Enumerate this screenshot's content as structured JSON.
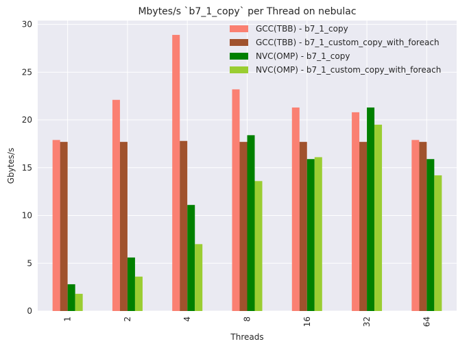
{
  "chart_data": {
    "type": "bar",
    "title": "Mbytes/s `b7_1_copy` per Thread on nebulac",
    "xlabel": "Threads",
    "ylabel": "Gbytes/s",
    "ylim": [
      0,
      30.4
    ],
    "yticks": [
      0,
      5,
      10,
      15,
      20,
      25,
      30
    ],
    "categories": [
      "1",
      "2",
      "4",
      "8",
      "16",
      "32",
      "64"
    ],
    "series": [
      {
        "name": "GCC(TBB) - b7_1_copy",
        "color": "#fa8072",
        "values": [
          17.9,
          22.1,
          28.9,
          23.2,
          21.3,
          20.8,
          17.9
        ]
      },
      {
        "name": "GCC(TBB) - b7_1_custom_copy_with_foreach",
        "color": "#a0522d",
        "values": [
          17.7,
          17.7,
          17.8,
          17.7,
          17.7,
          17.7,
          17.7
        ]
      },
      {
        "name": "NVC(OMP) - b7_1_copy",
        "color": "#008000",
        "values": [
          2.8,
          5.6,
          11.1,
          18.4,
          15.9,
          21.3,
          15.9
        ]
      },
      {
        "name": "NVC(OMP) - b7_1_custom_copy_with_foreach",
        "color": "#9acd32",
        "values": [
          1.8,
          3.6,
          7.0,
          13.6,
          16.1,
          19.5,
          14.2
        ]
      }
    ],
    "grid": true,
    "legend": "top-right",
    "background": "#eaeaf2"
  }
}
